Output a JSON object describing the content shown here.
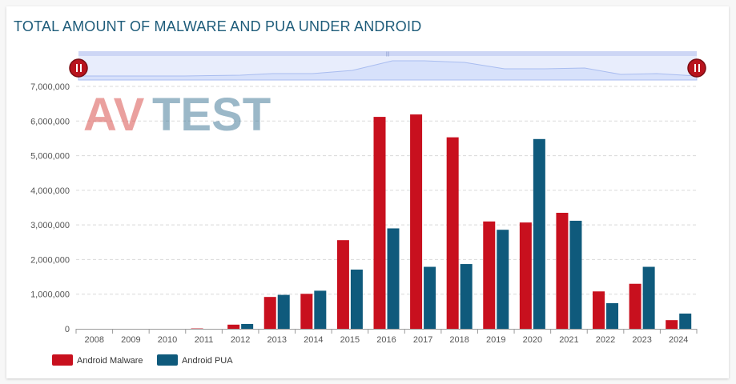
{
  "chart_data": {
    "type": "bar",
    "title": "TOTAL AMOUNT OF MALWARE AND PUA UNDER ANDROID",
    "categories": [
      "2008",
      "2009",
      "2010",
      "2011",
      "2012",
      "2013",
      "2014",
      "2015",
      "2016",
      "2017",
      "2018",
      "2019",
      "2020",
      "2021",
      "2022",
      "2023",
      "2024"
    ],
    "series": [
      {
        "name": "Android Malware",
        "color": "#c8101e",
        "values": [
          0,
          0,
          0,
          10000,
          120000,
          920000,
          1010000,
          2560000,
          6120000,
          6190000,
          5530000,
          3100000,
          3070000,
          3350000,
          1080000,
          1300000,
          250000
        ]
      },
      {
        "name": "Android PUA",
        "color": "#0f5a7c",
        "values": [
          0,
          0,
          0,
          0,
          140000,
          980000,
          1100000,
          1710000,
          2900000,
          1790000,
          1870000,
          2860000,
          5480000,
          3120000,
          740000,
          1790000,
          440000
        ]
      }
    ],
    "ylim": [
      0,
      7000000
    ],
    "yticks": [
      "0",
      "1,000,000",
      "2,000,000",
      "3,000,000",
      "4,000,000",
      "5,000,000",
      "6,000,000",
      "7,000,000"
    ],
    "grid": true,
    "legend": "bottom-left"
  },
  "logo": {
    "text_av": "AV",
    "text_test": "TEST"
  },
  "navigator": {
    "left_handle_icon": "pause-icon",
    "right_handle_icon": "pause-icon"
  }
}
